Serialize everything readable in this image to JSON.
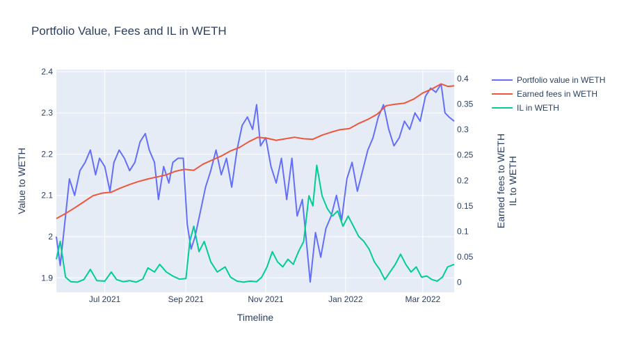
{
  "chart_data": {
    "type": "line",
    "title": "Portfolio Value, Fees and IL in WETH",
    "xlabel": "Timeline",
    "ylabel_left": "Value to WETH",
    "ylabel_right_1": "Earned fees to WETH",
    "ylabel_right_2": "IL to WETH",
    "x_range": [
      "2021-05-25",
      "2022-03-25"
    ],
    "ylim_left": [
      1.865,
      2.405
    ],
    "ylim_right": [
      -0.02,
      0.418
    ],
    "x_ticks": [
      {
        "date": "2021-07-01",
        "label": "Jul 2021"
      },
      {
        "date": "2021-09-01",
        "label": "Sep 2021"
      },
      {
        "date": "2021-11-01",
        "label": "Nov 2021"
      },
      {
        "date": "2022-01-01",
        "label": "Jan 2022"
      },
      {
        "date": "2022-03-01",
        "label": "Mar 2022"
      }
    ],
    "y_left_ticks": [
      1.9,
      2,
      2.1,
      2.2,
      2.3,
      2.4
    ],
    "y_left_tick_labels": [
      "1.9",
      "2",
      "2.1",
      "2.2",
      "2.3",
      "2.4"
    ],
    "y_right_ticks": [
      0,
      0.05,
      0.1,
      0.15,
      0.2,
      0.25,
      0.3,
      0.35,
      0.4
    ],
    "y_right_tick_labels": [
      "0",
      "0.05",
      "0.1",
      "0.15",
      "0.2",
      "0.25",
      "0.3",
      "0.35",
      "0.4"
    ],
    "grid": true,
    "legend_position": "top-right",
    "series": [
      {
        "name": "Portfolio value in WETH",
        "axis": "left",
        "color": "#636efa",
        "points": [
          [
            "2021-05-25",
            2.0
          ],
          [
            "2021-05-28",
            1.93
          ],
          [
            "2021-06-01",
            2.05
          ],
          [
            "2021-06-04",
            2.14
          ],
          [
            "2021-06-08",
            2.1
          ],
          [
            "2021-06-12",
            2.16
          ],
          [
            "2021-06-16",
            2.18
          ],
          [
            "2021-06-20",
            2.21
          ],
          [
            "2021-06-24",
            2.15
          ],
          [
            "2021-06-27",
            2.19
          ],
          [
            "2021-07-01",
            2.17
          ],
          [
            "2021-07-05",
            2.11
          ],
          [
            "2021-07-08",
            2.18
          ],
          [
            "2021-07-12",
            2.21
          ],
          [
            "2021-07-16",
            2.19
          ],
          [
            "2021-07-20",
            2.16
          ],
          [
            "2021-07-24",
            2.18
          ],
          [
            "2021-07-28",
            2.23
          ],
          [
            "2021-08-01",
            2.25
          ],
          [
            "2021-08-04",
            2.21
          ],
          [
            "2021-08-08",
            2.18
          ],
          [
            "2021-08-11",
            2.09
          ],
          [
            "2021-08-15",
            2.17
          ],
          [
            "2021-08-19",
            2.13
          ],
          [
            "2021-08-22",
            2.18
          ],
          [
            "2021-08-26",
            2.19
          ],
          [
            "2021-08-30",
            2.19
          ],
          [
            "2021-09-02",
            2.03
          ],
          [
            "2021-09-05",
            1.97
          ],
          [
            "2021-09-08",
            2.0
          ],
          [
            "2021-09-12",
            2.06
          ],
          [
            "2021-09-16",
            2.12
          ],
          [
            "2021-09-20",
            2.16
          ],
          [
            "2021-09-24",
            2.21
          ],
          [
            "2021-09-28",
            2.15
          ],
          [
            "2021-10-02",
            2.19
          ],
          [
            "2021-10-06",
            2.12
          ],
          [
            "2021-10-10",
            2.21
          ],
          [
            "2021-10-14",
            2.27
          ],
          [
            "2021-10-18",
            2.29
          ],
          [
            "2021-10-22",
            2.26
          ],
          [
            "2021-10-25",
            2.32
          ],
          [
            "2021-10-28",
            2.22
          ],
          [
            "2021-11-01",
            2.24
          ],
          [
            "2021-11-05",
            2.17
          ],
          [
            "2021-11-09",
            2.13
          ],
          [
            "2021-11-13",
            2.19
          ],
          [
            "2021-11-17",
            2.09
          ],
          [
            "2021-11-21",
            2.19
          ],
          [
            "2021-11-25",
            2.05
          ],
          [
            "2021-11-29",
            2.09
          ],
          [
            "2021-12-02",
            1.99
          ],
          [
            "2021-12-05",
            1.89
          ],
          [
            "2021-12-09",
            2.01
          ],
          [
            "2021-12-13",
            1.95
          ],
          [
            "2021-12-17",
            2.02
          ],
          [
            "2021-12-21",
            2.05
          ],
          [
            "2021-12-25",
            2.1
          ],
          [
            "2021-12-29",
            2.04
          ],
          [
            "2022-01-02",
            2.14
          ],
          [
            "2022-01-06",
            2.18
          ],
          [
            "2022-01-10",
            2.11
          ],
          [
            "2022-01-14",
            2.16
          ],
          [
            "2022-01-18",
            2.21
          ],
          [
            "2022-01-22",
            2.24
          ],
          [
            "2022-01-26",
            2.29
          ],
          [
            "2022-01-30",
            2.32
          ],
          [
            "2022-02-03",
            2.26
          ],
          [
            "2022-02-07",
            2.22
          ],
          [
            "2022-02-11",
            2.24
          ],
          [
            "2022-02-15",
            2.28
          ],
          [
            "2022-02-19",
            2.26
          ],
          [
            "2022-02-23",
            2.3
          ],
          [
            "2022-02-27",
            2.28
          ],
          [
            "2022-03-03",
            2.34
          ],
          [
            "2022-03-07",
            2.36
          ],
          [
            "2022-03-11",
            2.35
          ],
          [
            "2022-03-15",
            2.37
          ],
          [
            "2022-03-18",
            2.3
          ],
          [
            "2022-03-21",
            2.29
          ],
          [
            "2022-03-25",
            2.28
          ]
        ]
      },
      {
        "name": "Earned fees in WETH",
        "axis": "right",
        "color": "#ef553b",
        "points": [
          [
            "2021-05-25",
            0.125
          ],
          [
            "2021-06-01",
            0.135
          ],
          [
            "2021-06-08",
            0.146
          ],
          [
            "2021-06-15",
            0.158
          ],
          [
            "2021-06-22",
            0.17
          ],
          [
            "2021-06-29",
            0.175
          ],
          [
            "2021-07-06",
            0.177
          ],
          [
            "2021-07-13",
            0.185
          ],
          [
            "2021-07-20",
            0.192
          ],
          [
            "2021-07-27",
            0.198
          ],
          [
            "2021-08-03",
            0.203
          ],
          [
            "2021-08-10",
            0.207
          ],
          [
            "2021-08-17",
            0.211
          ],
          [
            "2021-08-24",
            0.218
          ],
          [
            "2021-08-31",
            0.222
          ],
          [
            "2021-09-07",
            0.22
          ],
          [
            "2021-09-14",
            0.232
          ],
          [
            "2021-09-21",
            0.24
          ],
          [
            "2021-09-28",
            0.248
          ],
          [
            "2021-10-05",
            0.258
          ],
          [
            "2021-10-12",
            0.265
          ],
          [
            "2021-10-19",
            0.276
          ],
          [
            "2021-10-26",
            0.285
          ],
          [
            "2021-11-02",
            0.283
          ],
          [
            "2021-11-09",
            0.279
          ],
          [
            "2021-11-16",
            0.282
          ],
          [
            "2021-11-23",
            0.285
          ],
          [
            "2021-11-30",
            0.282
          ],
          [
            "2021-12-07",
            0.281
          ],
          [
            "2021-12-14",
            0.289
          ],
          [
            "2021-12-21",
            0.295
          ],
          [
            "2021-12-28",
            0.3
          ],
          [
            "2022-01-04",
            0.302
          ],
          [
            "2022-01-11",
            0.312
          ],
          [
            "2022-01-18",
            0.32
          ],
          [
            "2022-01-25",
            0.33
          ],
          [
            "2022-02-01",
            0.347
          ],
          [
            "2022-02-08",
            0.35
          ],
          [
            "2022-02-15",
            0.352
          ],
          [
            "2022-02-22",
            0.36
          ],
          [
            "2022-03-01",
            0.372
          ],
          [
            "2022-03-08",
            0.38
          ],
          [
            "2022-03-15",
            0.39
          ],
          [
            "2022-03-20",
            0.385
          ],
          [
            "2022-03-25",
            0.386
          ]
        ]
      },
      {
        "name": "IL in WETH",
        "axis": "right",
        "color": "#00cc96",
        "points": [
          [
            "2021-05-25",
            0.045
          ],
          [
            "2021-05-28",
            0.08
          ],
          [
            "2021-06-01",
            0.01
          ],
          [
            "2021-06-05",
            0.001
          ],
          [
            "2021-06-10",
            0.0
          ],
          [
            "2021-06-15",
            0.005
          ],
          [
            "2021-06-20",
            0.025
          ],
          [
            "2021-06-25",
            0.003
          ],
          [
            "2021-07-01",
            0.002
          ],
          [
            "2021-07-06",
            0.02
          ],
          [
            "2021-07-10",
            0.005
          ],
          [
            "2021-07-15",
            0.001
          ],
          [
            "2021-07-20",
            0.003
          ],
          [
            "2021-07-25",
            0.0
          ],
          [
            "2021-07-30",
            0.006
          ],
          [
            "2021-08-03",
            0.028
          ],
          [
            "2021-08-08",
            0.02
          ],
          [
            "2021-08-12",
            0.035
          ],
          [
            "2021-08-17",
            0.02
          ],
          [
            "2021-08-22",
            0.012
          ],
          [
            "2021-08-27",
            0.006
          ],
          [
            "2021-09-01",
            0.007
          ],
          [
            "2021-09-04",
            0.08
          ],
          [
            "2021-09-07",
            0.11
          ],
          [
            "2021-09-11",
            0.06
          ],
          [
            "2021-09-15",
            0.08
          ],
          [
            "2021-09-20",
            0.04
          ],
          [
            "2021-09-25",
            0.02
          ],
          [
            "2021-10-01",
            0.03
          ],
          [
            "2021-10-05",
            0.01
          ],
          [
            "2021-10-10",
            0.002
          ],
          [
            "2021-10-15",
            0.0
          ],
          [
            "2021-10-20",
            0.002
          ],
          [
            "2021-10-25",
            0.001
          ],
          [
            "2021-10-29",
            0.01
          ],
          [
            "2021-11-02",
            0.03
          ],
          [
            "2021-11-06",
            0.06
          ],
          [
            "2021-11-10",
            0.04
          ],
          [
            "2021-11-14",
            0.03
          ],
          [
            "2021-11-18",
            0.045
          ],
          [
            "2021-11-22",
            0.035
          ],
          [
            "2021-11-26",
            0.06
          ],
          [
            "2021-11-30",
            0.08
          ],
          [
            "2021-12-04",
            0.17
          ],
          [
            "2021-12-07",
            0.15
          ],
          [
            "2021-12-10",
            0.23
          ],
          [
            "2021-12-14",
            0.17
          ],
          [
            "2021-12-18",
            0.145
          ],
          [
            "2021-12-22",
            0.13
          ],
          [
            "2021-12-26",
            0.14
          ],
          [
            "2021-12-30",
            0.11
          ],
          [
            "2022-01-03",
            0.13
          ],
          [
            "2022-01-07",
            0.11
          ],
          [
            "2022-01-11",
            0.09
          ],
          [
            "2022-01-15",
            0.08
          ],
          [
            "2022-01-19",
            0.065
          ],
          [
            "2022-01-23",
            0.04
          ],
          [
            "2022-01-27",
            0.025
          ],
          [
            "2022-01-31",
            0.005
          ],
          [
            "2022-02-04",
            0.02
          ],
          [
            "2022-02-08",
            0.035
          ],
          [
            "2022-02-12",
            0.055
          ],
          [
            "2022-02-16",
            0.035
          ],
          [
            "2022-02-20",
            0.02
          ],
          [
            "2022-02-24",
            0.03
          ],
          [
            "2022-02-28",
            0.01
          ],
          [
            "2022-03-04",
            0.012
          ],
          [
            "2022-03-08",
            0.005
          ],
          [
            "2022-03-12",
            0.002
          ],
          [
            "2022-03-16",
            0.01
          ],
          [
            "2022-03-20",
            0.03
          ],
          [
            "2022-03-25",
            0.035
          ]
        ]
      }
    ]
  }
}
